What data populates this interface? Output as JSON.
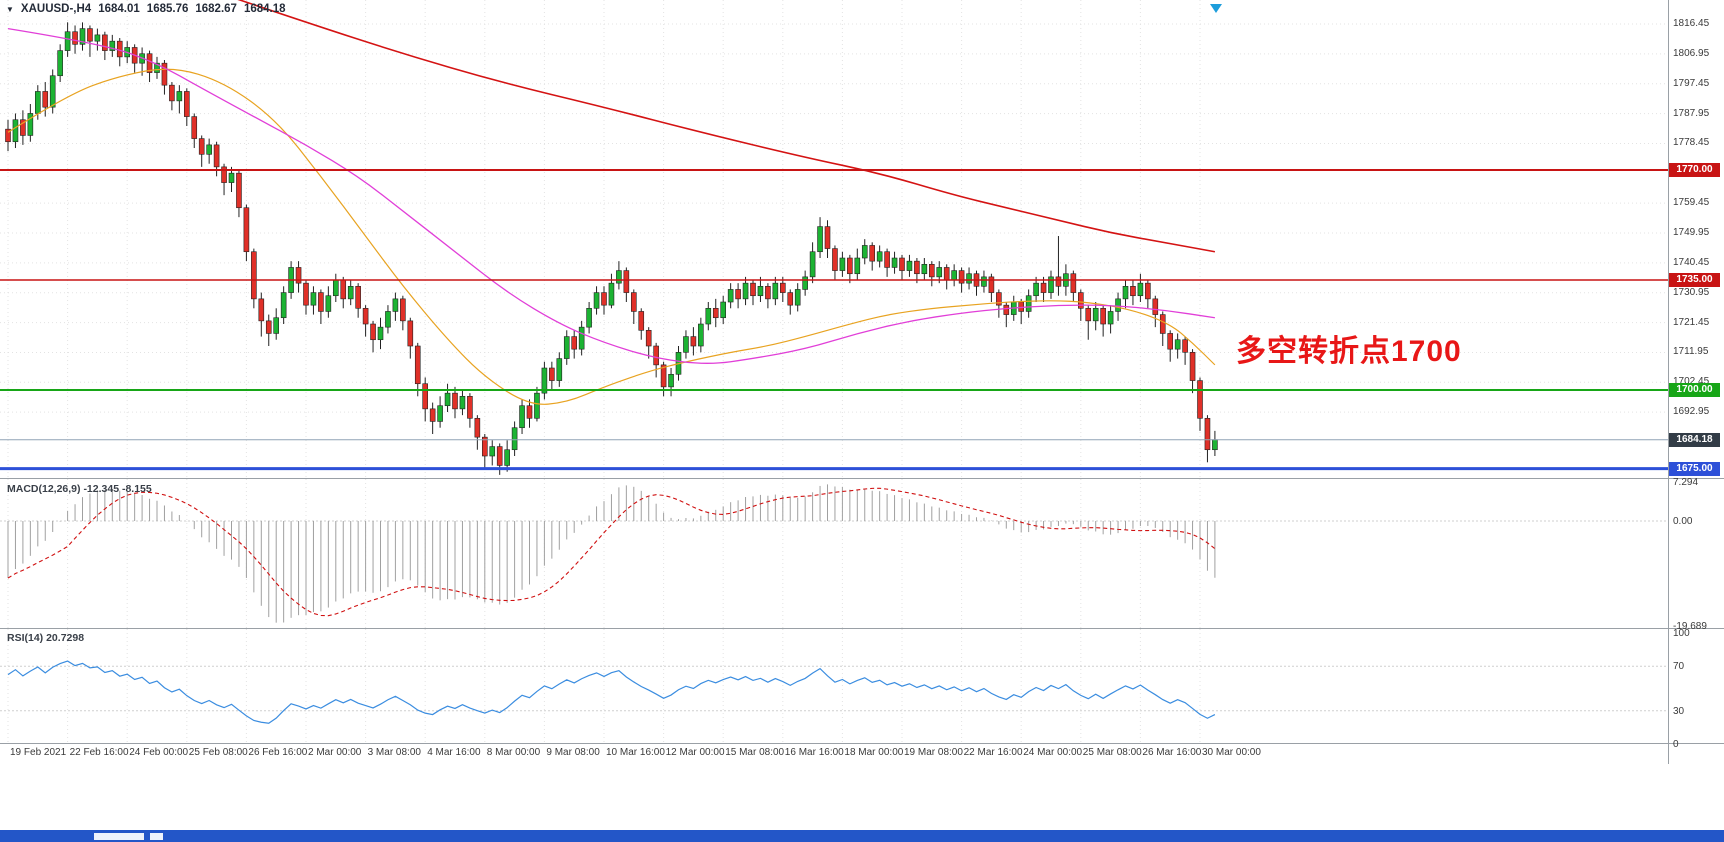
{
  "window": {
    "menu_glyph": "▼",
    "symbol_timeframe": "XAUUSD-,H4",
    "quote": {
      "open": "1684.01",
      "high": "1685.76",
      "low": "1682.67",
      "close": "1684.18"
    }
  },
  "annotation": {
    "text": "多空转折点1700",
    "color": "#e81717"
  },
  "indicators": {
    "macd": {
      "label": "MACD(12,26,9) -12.345 -8.155",
      "macd_value": "-12.345",
      "signal_value": "-8.155",
      "axis": [
        "7.294",
        "0.00",
        "-19.689"
      ]
    },
    "rsi": {
      "label": "RSI(14) 20.7298",
      "value": "20.7298",
      "axis": [
        "100",
        "70",
        "30",
        "0"
      ]
    }
  },
  "palette": {
    "bull": "#1cb333",
    "bear": "#e03028",
    "outline": "#222222",
    "grid": "#e3e3e3",
    "frame": "#9aa0a6",
    "macd_hist": "#a0a0a0",
    "macd_signal": "#d01010",
    "rsi_line": "#3b8de0"
  },
  "chart_data": {
    "type": "candlestick",
    "symbol": "XAUUSD-",
    "timeframe": "H4",
    "y_range": [
      1672,
      1824
    ],
    "y_tick_labels": [
      "1816.45",
      "1806.95",
      "1797.45",
      "1787.95",
      "1778.45",
      "1759.45",
      "1749.95",
      "1740.45",
      "1730.95",
      "1721.45",
      "1711.95",
      "1702.45",
      "1692.95"
    ],
    "x_tick_labels": [
      "19 Feb 2021",
      "22 Feb 16:00",
      "24 Feb 00:00",
      "25 Feb 08:00",
      "26 Feb 16:00",
      "2 Mar 00:00",
      "3 Mar 08:00",
      "4 Mar 16:00",
      "8 Mar 00:00",
      "9 Mar 08:00",
      "10 Mar 16:00",
      "12 Mar 00:00",
      "15 Mar 08:00",
      "16 Mar 16:00",
      "18 Mar 00:00",
      "19 Mar 08:00",
      "22 Mar 16:00",
      "24 Mar 00:00",
      "25 Mar 08:00",
      "26 Mar 16:00",
      "30 Mar 00:00"
    ],
    "bars_per_tick": 8,
    "hlines": [
      {
        "price": 1770.0,
        "label": "1770.00",
        "color": "#c81414",
        "width": 2
      },
      {
        "price": 1735.0,
        "label": "1735.00",
        "color": "#c81414",
        "width": 1.5
      },
      {
        "price": 1700.0,
        "label": "1700.00",
        "color": "#17a617",
        "width": 2
      },
      {
        "price": 1684.18,
        "label": "1684.18",
        "color": "#90a4b5",
        "width": 1,
        "label_bg": "#323c46"
      },
      {
        "price": 1675.0,
        "label": "1675.00",
        "color": "#2d50d8",
        "width": 3
      }
    ],
    "ma_lines": [
      {
        "name": "ma-fast-orange",
        "color": "#e8a321",
        "width": 1.2,
        "points": [
          [
            0,
            1782
          ],
          [
            8,
            1794
          ],
          [
            15,
            1800
          ],
          [
            22,
            1803
          ],
          [
            29,
            1798
          ],
          [
            36,
            1786
          ],
          [
            42,
            1768
          ],
          [
            48,
            1749
          ],
          [
            53,
            1733
          ],
          [
            59,
            1716
          ],
          [
            64,
            1704
          ],
          [
            70,
            1695
          ],
          [
            75,
            1696
          ],
          [
            80,
            1701
          ],
          [
            86,
            1706
          ],
          [
            91,
            1709
          ],
          [
            97,
            1712
          ],
          [
            102,
            1714
          ],
          [
            107,
            1717
          ],
          [
            113,
            1721
          ],
          [
            118,
            1724
          ],
          [
            124,
            1726
          ],
          [
            129,
            1727
          ],
          [
            134,
            1728
          ],
          [
            140,
            1728.5
          ],
          [
            145,
            1728
          ],
          [
            151,
            1725.5
          ],
          [
            156,
            1721
          ],
          [
            159,
            1715
          ],
          [
            162,
            1708
          ]
        ]
      },
      {
        "name": "ma-mid-magenta",
        "color": "#e13fd8",
        "width": 1.3,
        "points": [
          [
            0,
            1815
          ],
          [
            13,
            1810
          ],
          [
            20,
            1804
          ],
          [
            26,
            1796
          ],
          [
            33,
            1787
          ],
          [
            40,
            1778
          ],
          [
            47,
            1768
          ],
          [
            53,
            1757
          ],
          [
            60,
            1744
          ],
          [
            67,
            1731
          ],
          [
            74,
            1721
          ],
          [
            80,
            1715
          ],
          [
            87,
            1710
          ],
          [
            94,
            1708
          ],
          [
            100,
            1710
          ],
          [
            107,
            1713
          ],
          [
            114,
            1718
          ],
          [
            121,
            1722
          ],
          [
            128,
            1724.5
          ],
          [
            134,
            1726
          ],
          [
            141,
            1727
          ],
          [
            148,
            1727
          ],
          [
            155,
            1725.5
          ],
          [
            162,
            1723
          ]
        ]
      },
      {
        "name": "ma-slow-red",
        "color": "#d41313",
        "width": 1.6,
        "points": [
          [
            30,
            1825
          ],
          [
            40,
            1817
          ],
          [
            53,
            1807
          ],
          [
            66,
            1798
          ],
          [
            80,
            1790
          ],
          [
            93,
            1782
          ],
          [
            107,
            1774
          ],
          [
            117,
            1769
          ],
          [
            127,
            1762
          ],
          [
            134,
            1758
          ],
          [
            141,
            1754
          ],
          [
            148,
            1750
          ],
          [
            155,
            1747
          ],
          [
            162,
            1744
          ]
        ]
      },
      {
        "name": "macd-params",
        "color": "",
        "width": 0,
        "points": []
      }
    ],
    "macd": {
      "params": [
        12,
        26,
        9
      ]
    },
    "rsi": {
      "period": 14,
      "levels": [
        70,
        30
      ]
    },
    "ohlc": [
      [
        1783,
        1786,
        1776,
        1779
      ],
      [
        1779,
        1788,
        1777,
        1786
      ],
      [
        1786,
        1789,
        1778,
        1781
      ],
      [
        1781,
        1791,
        1779,
        1788
      ],
      [
        1788,
        1797,
        1786,
        1795
      ],
      [
        1795,
        1798,
        1787,
        1790
      ],
      [
        1790,
        1802,
        1788,
        1800
      ],
      [
        1800,
        1810,
        1798,
        1808
      ],
      [
        1808,
        1817,
        1806,
        1814
      ],
      [
        1814,
        1816,
        1807,
        1810
      ],
      [
        1810,
        1817,
        1808,
        1815
      ],
      [
        1815,
        1816,
        1806,
        1811
      ],
      [
        1811,
        1815,
        1808,
        1813
      ],
      [
        1813,
        1814,
        1805,
        1808
      ],
      [
        1808,
        1813,
        1806,
        1811
      ],
      [
        1811,
        1812,
        1803,
        1806
      ],
      [
        1806,
        1811,
        1804,
        1809
      ],
      [
        1809,
        1810,
        1801,
        1804
      ],
      [
        1804,
        1809,
        1800,
        1807
      ],
      [
        1807,
        1808,
        1798,
        1801
      ],
      [
        1801,
        1806,
        1799,
        1804
      ],
      [
        1804,
        1805,
        1794,
        1797
      ],
      [
        1797,
        1798,
        1789,
        1792
      ],
      [
        1792,
        1797,
        1788,
        1795
      ],
      [
        1795,
        1796,
        1784,
        1787
      ],
      [
        1787,
        1788,
        1777,
        1780
      ],
      [
        1780,
        1781,
        1771,
        1775
      ],
      [
        1775,
        1780,
        1772,
        1778
      ],
      [
        1778,
        1779,
        1768,
        1771
      ],
      [
        1771,
        1772,
        1762,
        1766
      ],
      [
        1766,
        1771,
        1763,
        1769
      ],
      [
        1769,
        1770,
        1755,
        1758
      ],
      [
        1758,
        1759,
        1741,
        1744
      ],
      [
        1744,
        1745,
        1726,
        1729
      ],
      [
        1729,
        1731,
        1717,
        1722
      ],
      [
        1722,
        1724,
        1714,
        1718
      ],
      [
        1718,
        1726,
        1716,
        1723
      ],
      [
        1723,
        1733,
        1721,
        1731
      ],
      [
        1731,
        1741,
        1729,
        1739
      ],
      [
        1739,
        1741,
        1731,
        1734
      ],
      [
        1734,
        1735,
        1724,
        1727
      ],
      [
        1727,
        1733,
        1724,
        1731
      ],
      [
        1731,
        1732,
        1721,
        1725
      ],
      [
        1725,
        1733,
        1723,
        1730
      ],
      [
        1730,
        1737,
        1728,
        1735
      ],
      [
        1735,
        1736,
        1726,
        1729
      ],
      [
        1729,
        1735,
        1727,
        1733
      ],
      [
        1733,
        1734,
        1723,
        1726
      ],
      [
        1726,
        1727,
        1717,
        1721
      ],
      [
        1721,
        1722,
        1712,
        1716
      ],
      [
        1716,
        1723,
        1713,
        1720
      ],
      [
        1720,
        1727,
        1718,
        1725
      ],
      [
        1725,
        1731,
        1722,
        1729
      ],
      [
        1729,
        1730,
        1719,
        1722
      ],
      [
        1722,
        1723,
        1710,
        1714
      ],
      [
        1714,
        1715,
        1698,
        1702
      ],
      [
        1702,
        1704,
        1690,
        1694
      ],
      [
        1694,
        1696,
        1686,
        1690
      ],
      [
        1690,
        1698,
        1688,
        1695
      ],
      [
        1695,
        1702,
        1693,
        1699
      ],
      [
        1699,
        1701,
        1691,
        1694
      ],
      [
        1694,
        1700,
        1692,
        1698
      ],
      [
        1698,
        1699,
        1688,
        1691
      ],
      [
        1691,
        1692,
        1681,
        1685
      ],
      [
        1685,
        1686,
        1675,
        1679
      ],
      [
        1679,
        1684,
        1676,
        1682
      ],
      [
        1682,
        1683,
        1673,
        1676
      ],
      [
        1676,
        1684,
        1674,
        1681
      ],
      [
        1681,
        1690,
        1679,
        1688
      ],
      [
        1688,
        1697,
        1686,
        1695
      ],
      [
        1695,
        1697,
        1688,
        1691
      ],
      [
        1691,
        1701,
        1690,
        1699
      ],
      [
        1699,
        1709,
        1697,
        1707
      ],
      [
        1707,
        1709,
        1700,
        1703
      ],
      [
        1703,
        1712,
        1701,
        1710
      ],
      [
        1710,
        1719,
        1708,
        1717
      ],
      [
        1717,
        1719,
        1710,
        1713
      ],
      [
        1713,
        1722,
        1711,
        1720
      ],
      [
        1720,
        1728,
        1718,
        1726
      ],
      [
        1726,
        1733,
        1724,
        1731
      ],
      [
        1731,
        1733,
        1724,
        1727
      ],
      [
        1727,
        1737,
        1726,
        1734
      ],
      [
        1734,
        1741,
        1732,
        1738
      ],
      [
        1738,
        1739,
        1728,
        1731
      ],
      [
        1731,
        1732,
        1721,
        1725
      ],
      [
        1725,
        1726,
        1716,
        1719
      ],
      [
        1719,
        1720,
        1710,
        1714
      ],
      [
        1714,
        1715,
        1704,
        1708
      ],
      [
        1708,
        1709,
        1698,
        1701
      ],
      [
        1701,
        1707,
        1698,
        1705
      ],
      [
        1705,
        1714,
        1703,
        1712
      ],
      [
        1712,
        1719,
        1710,
        1717
      ],
      [
        1717,
        1720,
        1711,
        1714
      ],
      [
        1714,
        1723,
        1712,
        1721
      ],
      [
        1721,
        1728,
        1719,
        1726
      ],
      [
        1726,
        1729,
        1720,
        1723
      ],
      [
        1723,
        1730,
        1721,
        1728
      ],
      [
        1728,
        1734,
        1726,
        1732
      ],
      [
        1732,
        1734,
        1726,
        1729
      ],
      [
        1729,
        1736,
        1727,
        1734
      ],
      [
        1734,
        1735,
        1727,
        1730
      ],
      [
        1730,
        1736,
        1728,
        1733
      ],
      [
        1733,
        1734,
        1726,
        1729
      ],
      [
        1729,
        1736,
        1727,
        1734
      ],
      [
        1734,
        1736,
        1728,
        1731
      ],
      [
        1731,
        1732,
        1724,
        1727
      ],
      [
        1727,
        1734,
        1725,
        1732
      ],
      [
        1732,
        1738,
        1730,
        1736
      ],
      [
        1736,
        1747,
        1734,
        1744
      ],
      [
        1744,
        1755,
        1742,
        1752
      ],
      [
        1752,
        1754,
        1742,
        1745
      ],
      [
        1745,
        1746,
        1735,
        1738
      ],
      [
        1738,
        1744,
        1736,
        1742
      ],
      [
        1742,
        1743,
        1734,
        1737
      ],
      [
        1737,
        1745,
        1735,
        1742
      ],
      [
        1742,
        1748,
        1740,
        1746
      ],
      [
        1746,
        1747,
        1738,
        1741
      ],
      [
        1741,
        1746,
        1739,
        1744
      ],
      [
        1744,
        1745,
        1736,
        1739
      ],
      [
        1739,
        1744,
        1737,
        1742
      ],
      [
        1742,
        1743,
        1735,
        1738
      ],
      [
        1738,
        1743,
        1736,
        1741
      ],
      [
        1741,
        1742,
        1734,
        1737
      ],
      [
        1737,
        1742,
        1735,
        1740
      ],
      [
        1740,
        1741,
        1733,
        1736
      ],
      [
        1736,
        1741,
        1734,
        1739
      ],
      [
        1739,
        1740,
        1732,
        1735
      ],
      [
        1735,
        1740,
        1733,
        1738
      ],
      [
        1738,
        1739,
        1731,
        1734
      ],
      [
        1734,
        1739,
        1732,
        1737
      ],
      [
        1737,
        1738,
        1730,
        1733
      ],
      [
        1733,
        1738,
        1731,
        1736
      ],
      [
        1736,
        1737,
        1728,
        1731
      ],
      [
        1731,
        1732,
        1723,
        1727
      ],
      [
        1727,
        1728,
        1720,
        1724
      ],
      [
        1724,
        1730,
        1722,
        1728
      ],
      [
        1728,
        1729,
        1721,
        1725
      ],
      [
        1725,
        1732,
        1723,
        1730
      ],
      [
        1730,
        1736,
        1728,
        1734
      ],
      [
        1734,
        1736,
        1728,
        1731
      ],
      [
        1731,
        1738,
        1729,
        1736
      ],
      [
        1736,
        1749,
        1730,
        1733
      ],
      [
        1733,
        1740,
        1730,
        1737
      ],
      [
        1737,
        1738,
        1728,
        1731
      ],
      [
        1731,
        1732,
        1722,
        1726
      ],
      [
        1726,
        1727,
        1716,
        1722
      ],
      [
        1722,
        1728,
        1719,
        1726
      ],
      [
        1726,
        1727,
        1717,
        1721
      ],
      [
        1721,
        1727,
        1718,
        1725
      ],
      [
        1725,
        1731,
        1722,
        1729
      ],
      [
        1729,
        1735,
        1726,
        1733
      ],
      [
        1733,
        1735,
        1727,
        1730
      ],
      [
        1730,
        1737,
        1728,
        1734
      ],
      [
        1734,
        1735,
        1726,
        1729
      ],
      [
        1729,
        1730,
        1720,
        1724
      ],
      [
        1724,
        1725,
        1714,
        1718
      ],
      [
        1718,
        1719,
        1709,
        1713
      ],
      [
        1713,
        1718,
        1710,
        1716
      ],
      [
        1716,
        1717,
        1708,
        1712
      ],
      [
        1712,
        1713,
        1699,
        1703
      ],
      [
        1703,
        1704,
        1687,
        1691
      ],
      [
        1691,
        1692,
        1677,
        1681
      ],
      [
        1681,
        1687,
        1679,
        1684.2
      ]
    ]
  }
}
